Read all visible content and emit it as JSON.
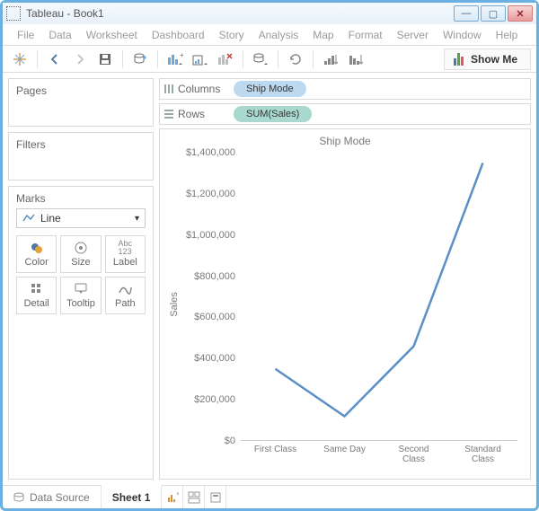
{
  "window": {
    "title": "Tableau - Book1"
  },
  "menus": [
    "File",
    "Data",
    "Worksheet",
    "Dashboard",
    "Story",
    "Analysis",
    "Map",
    "Format",
    "Server",
    "Window",
    "Help"
  ],
  "toolbar": {
    "showme_label": "Show Me",
    "showme_bars": [
      {
        "h": 8,
        "c": "#4e79a7"
      },
      {
        "h": 14,
        "c": "#59a14f"
      },
      {
        "h": 10,
        "c": "#e15759"
      }
    ]
  },
  "shelves": {
    "columns_label": "Columns",
    "rows_label": "Rows",
    "columns_pill": "Ship Mode",
    "rows_pill": "SUM(Sales)"
  },
  "panels": {
    "pages_label": "Pages",
    "filters_label": "Filters",
    "marks_label": "Marks",
    "mark_type": "Line",
    "mark_cells": [
      "Color",
      "Size",
      "Label",
      "Detail",
      "Tooltip",
      "Path"
    ]
  },
  "chart": {
    "title": "Ship Mode",
    "ylabel": "Sales",
    "line_color": "#5b8fc7",
    "line_width": 2.5,
    "background": "#ffffff",
    "ylim": [
      0,
      1400000
    ],
    "yticks": [
      {
        "v": 0,
        "label": "$0"
      },
      {
        "v": 200000,
        "label": "$200,000"
      },
      {
        "v": 400000,
        "label": "$400,000"
      },
      {
        "v": 600000,
        "label": "$600,000"
      },
      {
        "v": 800000,
        "label": "$800,000"
      },
      {
        "v": 1000000,
        "label": "$1,000,000"
      },
      {
        "v": 1200000,
        "label": "$1,200,000"
      },
      {
        "v": 1400000,
        "label": "$1,400,000"
      }
    ],
    "categories": [
      "First Class",
      "Same Day",
      "Second\nClass",
      "Standard\nClass"
    ],
    "values": [
      350000,
      120000,
      460000,
      1350000
    ]
  },
  "bottom": {
    "data_source": "Data Source",
    "sheet": "Sheet 1"
  }
}
